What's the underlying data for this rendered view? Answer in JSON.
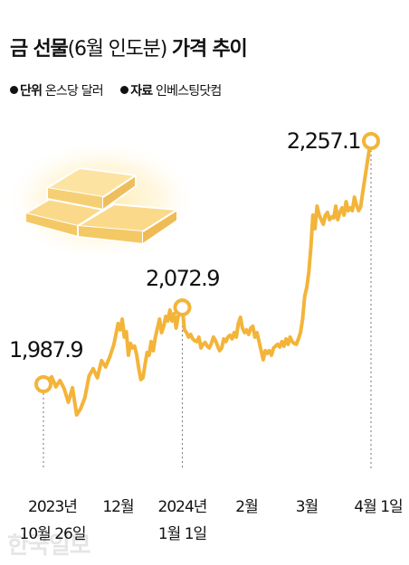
{
  "chart_data": {
    "type": "line",
    "title_bold": "금 선물",
    "title_paren": "(6월 인도분)",
    "title_bold2": "가격 추이",
    "unit_label": "단위",
    "unit_value": "온스당 달러",
    "source_label": "자료",
    "source_value": "인베스팅닷컴",
    "ylim": [
      1900,
      2300
    ],
    "line_color": "#F3B43A",
    "x_ticks": [
      {
        "line1": "2023년",
        "line2": "10월 26일",
        "day": 0
      },
      {
        "line1": "12월",
        "line2": "",
        "day": 36
      },
      {
        "line1": "2024년",
        "line2": "1월 1일",
        "day": 67
      },
      {
        "line1": "2월",
        "line2": "",
        "day": 98
      },
      {
        "line1": "3월",
        "line2": "",
        "day": 127
      },
      {
        "line1": "4월 1일",
        "line2": "",
        "day": 158
      }
    ],
    "highlights": [
      {
        "label": "1,987.9",
        "day": 0,
        "value": 1987.9
      },
      {
        "label": "2,072.9",
        "day": 67,
        "value": 2072.9
      },
      {
        "label": "2,257.1",
        "day": 158,
        "value": 2257.1
      }
    ],
    "series": [
      {
        "points": [
          [
            0,
            1987.9
          ],
          [
            2,
            1992
          ],
          [
            4,
            1996
          ],
          [
            6,
            1985
          ],
          [
            8,
            1992
          ],
          [
            10,
            1983
          ],
          [
            12,
            1968
          ],
          [
            14,
            1984
          ],
          [
            16,
            1954
          ],
          [
            18,
            1961
          ],
          [
            20,
            1973
          ],
          [
            22,
            1997
          ],
          [
            24,
            2005
          ],
          [
            26,
            1995
          ],
          [
            28,
            2014
          ],
          [
            30,
            2007
          ],
          [
            32,
            2018
          ],
          [
            34,
            2032
          ],
          [
            36,
            2055
          ],
          [
            37,
            2048
          ],
          [
            38,
            2060
          ],
          [
            39,
            2040
          ],
          [
            40,
            2046
          ],
          [
            41,
            2020
          ],
          [
            42,
            2033
          ],
          [
            43,
            2028
          ],
          [
            44,
            2030
          ],
          [
            45,
            2020
          ],
          [
            46,
            2005
          ],
          [
            47,
            1993
          ],
          [
            48,
            1995
          ],
          [
            49,
            2010
          ],
          [
            50,
            2023
          ],
          [
            51,
            2020
          ],
          [
            52,
            2035
          ],
          [
            53,
            2025
          ],
          [
            54,
            2040
          ],
          [
            55,
            2050
          ],
          [
            56,
            2060
          ],
          [
            57,
            2045
          ],
          [
            58,
            2052
          ],
          [
            59,
            2063
          ],
          [
            60,
            2058
          ],
          [
            61,
            2070
          ],
          [
            62,
            2058
          ],
          [
            63,
            2066
          ],
          [
            64,
            2050
          ],
          [
            65,
            2063
          ],
          [
            66,
            2068
          ],
          [
            67,
            2072.9
          ],
          [
            68,
            2048
          ],
          [
            69,
            2045
          ],
          [
            70,
            2040
          ],
          [
            71,
            2043
          ],
          [
            72,
            2038
          ],
          [
            73,
            2036
          ],
          [
            74,
            2035
          ],
          [
            75,
            2040
          ],
          [
            76,
            2028
          ],
          [
            77,
            2032
          ],
          [
            78,
            2034
          ],
          [
            79,
            2030
          ],
          [
            80,
            2028
          ],
          [
            81,
            2033
          ],
          [
            82,
            2040
          ],
          [
            83,
            2036
          ],
          [
            84,
            2030
          ],
          [
            85,
            2025
          ],
          [
            86,
            2028
          ],
          [
            87,
            2038
          ],
          [
            88,
            2035
          ],
          [
            89,
            2040
          ],
          [
            90,
            2042
          ],
          [
            91,
            2038
          ],
          [
            92,
            2045
          ],
          [
            93,
            2040
          ],
          [
            94,
            2055
          ],
          [
            95,
            2062
          ],
          [
            96,
            2050
          ],
          [
            97,
            2045
          ],
          [
            98,
            2048
          ],
          [
            99,
            2043
          ],
          [
            100,
            2050
          ],
          [
            101,
            2052
          ],
          [
            102,
            2040
          ],
          [
            103,
            2045
          ],
          [
            104,
            2035
          ],
          [
            105,
            2025
          ],
          [
            106,
            2015
          ],
          [
            107,
            2025
          ],
          [
            108,
            2022
          ],
          [
            109,
            2025
          ],
          [
            110,
            2020
          ],
          [
            111,
            2028
          ],
          [
            112,
            2030
          ],
          [
            113,
            2032
          ],
          [
            114,
            2029
          ],
          [
            115,
            2035
          ],
          [
            116,
            2030
          ],
          [
            117,
            2038
          ],
          [
            118,
            2032
          ],
          [
            119,
            2040
          ],
          [
            120,
            2035
          ],
          [
            121,
            2033
          ],
          [
            122,
            2032
          ],
          [
            123,
            2038
          ],
          [
            124,
            2045
          ],
          [
            125,
            2060
          ],
          [
            126,
            2085
          ],
          [
            127,
            2095
          ],
          [
            128,
            2112
          ],
          [
            129,
            2140
          ],
          [
            130,
            2175
          ],
          [
            131,
            2160
          ],
          [
            132,
            2185
          ],
          [
            133,
            2175
          ],
          [
            134,
            2170
          ],
          [
            135,
            2165
          ],
          [
            136,
            2175
          ],
          [
            137,
            2178
          ],
          [
            138,
            2170
          ],
          [
            139,
            2173
          ],
          [
            140,
            2172
          ],
          [
            141,
            2185
          ],
          [
            142,
            2170
          ],
          [
            143,
            2178
          ],
          [
            144,
            2183
          ],
          [
            145,
            2175
          ],
          [
            146,
            2190
          ],
          [
            147,
            2180
          ],
          [
            148,
            2183
          ],
          [
            149,
            2180
          ],
          [
            150,
            2195
          ],
          [
            151,
            2186
          ],
          [
            152,
            2180
          ],
          [
            153,
            2184
          ],
          [
            154,
            2200
          ],
          [
            155,
            2215
          ],
          [
            156,
            2230
          ],
          [
            157,
            2245
          ],
          [
            158,
            2257.1
          ]
        ]
      }
    ]
  },
  "watermark": "한국일보"
}
